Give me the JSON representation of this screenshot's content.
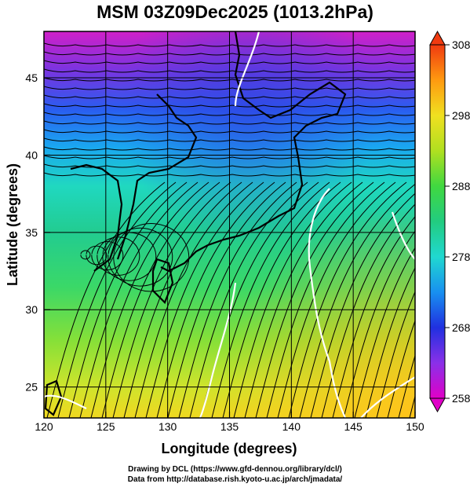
{
  "title": "MSM 03Z09Dec2025 (1013.2hPa)",
  "map": {
    "xlabel": "Longitude (degrees)",
    "ylabel": "Latitude  (degrees)",
    "lon_range": [
      120,
      150
    ],
    "lat_range": [
      23,
      48
    ],
    "lon_ticks": [
      "120",
      "125",
      "130",
      "135",
      "140",
      "145",
      "150"
    ],
    "lat_ticks": [
      "25",
      "30",
      "35",
      "40",
      "45"
    ],
    "grid": true
  },
  "colorbar": {
    "min": 258,
    "max": 308,
    "tick_labels": [
      "258",
      "268",
      "278",
      "288",
      "298",
      "308"
    ]
  },
  "credits": {
    "line1": "Drawing by DCL (https://www.gfd-dennou.org/library/dcl/)",
    "line2": "Data from http://database.rish.kyoto-u.ac.jp/arch/jmadata/"
  }
}
